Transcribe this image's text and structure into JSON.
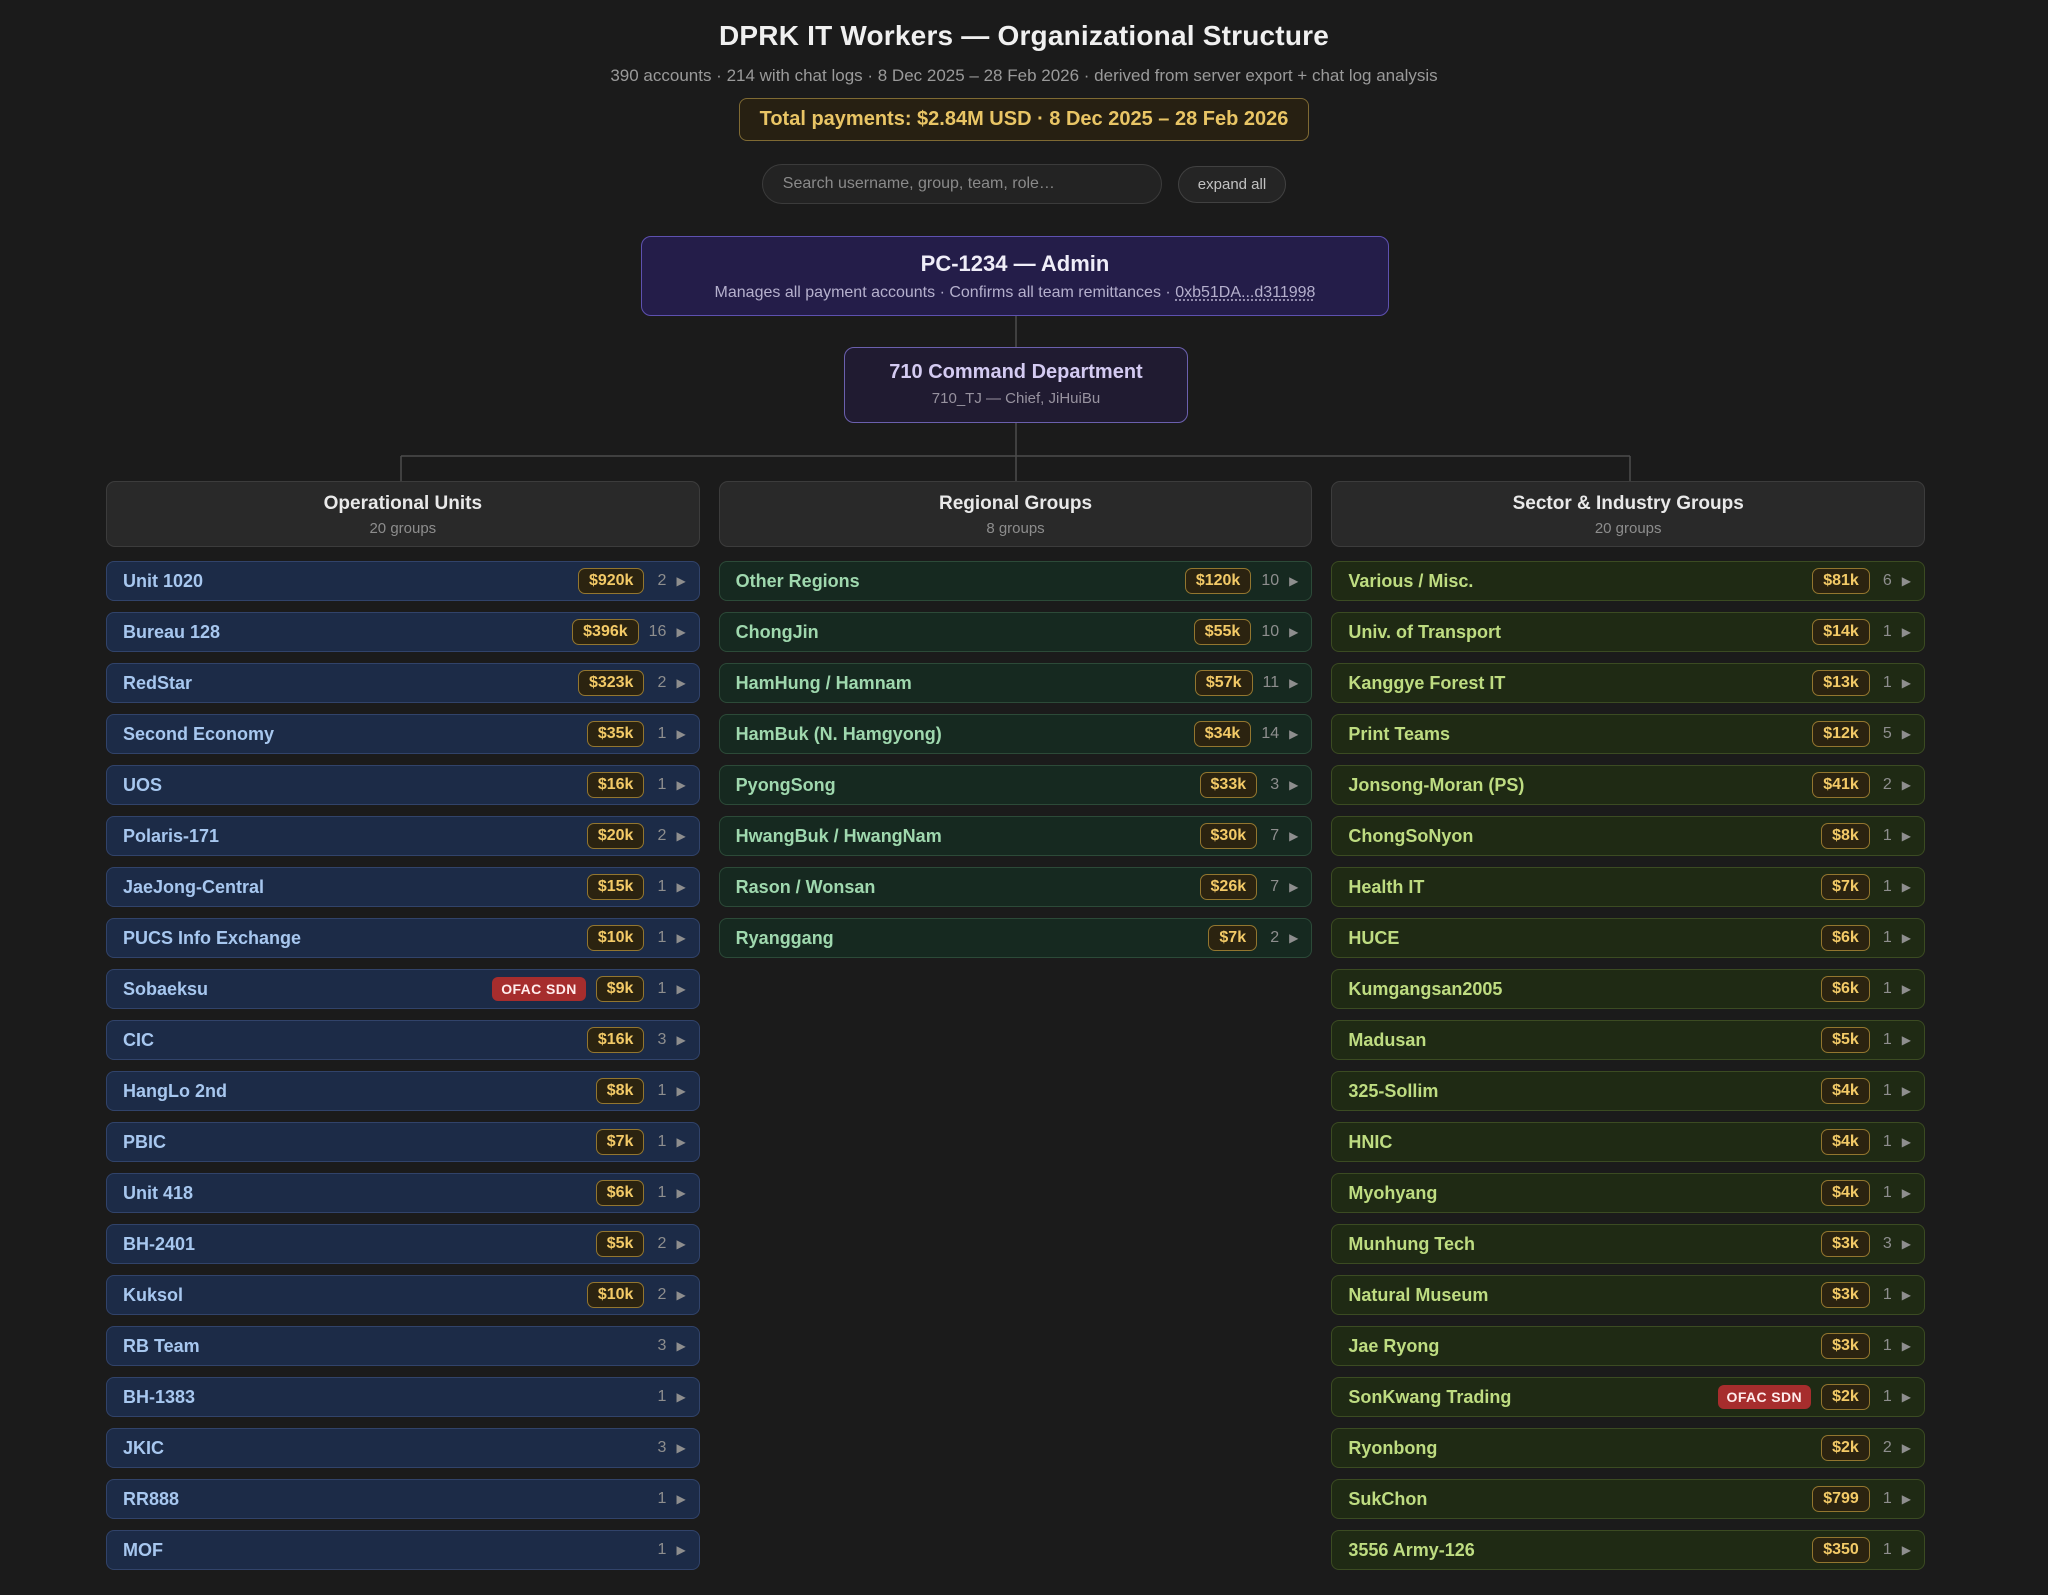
{
  "header": {
    "title": "DPRK IT Workers — Organizational Structure",
    "subtitle": "390 accounts · 214 with chat logs · 8 Dec 2025 – 28 Feb 2026 · derived from server export + chat log analysis",
    "total_badge": "Total payments: $2.84M USD · 8 Dec 2025 – 28 Feb 2026"
  },
  "search": {
    "placeholder": "Search username, group, team, role…",
    "expand_all_label": "expand all"
  },
  "admin_node": {
    "title": "PC-1234 — Admin",
    "description": "Manages all payment accounts · Confirms all team remittances ·",
    "wallet": "0xb51DA...d311998"
  },
  "command_node": {
    "title": "710 Command Department",
    "subtitle": "710_TJ — Chief, JiHuiBu"
  },
  "sdn_label": "OFAC SDN",
  "chevron_glyph": "▶",
  "columns": [
    {
      "title": "Operational Units",
      "subtitle": "20 groups",
      "theme": "col-blue",
      "items": [
        {
          "name": "Unit 1020",
          "amount": "$920k",
          "count": "2"
        },
        {
          "name": "Bureau 128",
          "amount": "$396k",
          "count": "16"
        },
        {
          "name": "RedStar",
          "amount": "$323k",
          "count": "2"
        },
        {
          "name": "Second Economy",
          "amount": "$35k",
          "count": "1"
        },
        {
          "name": "UOS",
          "amount": "$16k",
          "count": "1"
        },
        {
          "name": "Polaris-171",
          "amount": "$20k",
          "count": "2"
        },
        {
          "name": "JaeJong-Central",
          "amount": "$15k",
          "count": "1"
        },
        {
          "name": "PUCS Info Exchange",
          "amount": "$10k",
          "count": "1"
        },
        {
          "name": "Sobaeksu",
          "sdn": true,
          "amount": "$9k",
          "count": "1"
        },
        {
          "name": "CIC",
          "amount": "$16k",
          "count": "3"
        },
        {
          "name": "HangLo 2nd",
          "amount": "$8k",
          "count": "1"
        },
        {
          "name": "PBIC",
          "amount": "$7k",
          "count": "1"
        },
        {
          "name": "Unit 418",
          "amount": "$6k",
          "count": "1"
        },
        {
          "name": "BH-2401",
          "amount": "$5k",
          "count": "2"
        },
        {
          "name": "Kuksol",
          "amount": "$10k",
          "count": "2"
        },
        {
          "name": "RB Team",
          "amount": null,
          "count": "3"
        },
        {
          "name": "BH-1383",
          "amount": null,
          "count": "1"
        },
        {
          "name": "JKIC",
          "amount": null,
          "count": "3"
        },
        {
          "name": "RR888",
          "amount": null,
          "count": "1"
        },
        {
          "name": "MOF",
          "amount": null,
          "count": "1"
        }
      ]
    },
    {
      "title": "Regional Groups",
      "subtitle": "8 groups",
      "theme": "col-green",
      "items": [
        {
          "name": "Other Regions",
          "amount": "$120k",
          "count": "10"
        },
        {
          "name": "ChongJin",
          "amount": "$55k",
          "count": "10"
        },
        {
          "name": "HamHung / Hamnam",
          "amount": "$57k",
          "count": "11"
        },
        {
          "name": "HamBuk (N. Hamgyong)",
          "amount": "$34k",
          "count": "14"
        },
        {
          "name": "PyongSong",
          "amount": "$33k",
          "count": "3"
        },
        {
          "name": "HwangBuk / HwangNam",
          "amount": "$30k",
          "count": "7"
        },
        {
          "name": "Rason / Wonsan",
          "amount": "$26k",
          "count": "7"
        },
        {
          "name": "Ryanggang",
          "amount": "$7k",
          "count": "2"
        }
      ]
    },
    {
      "title": "Sector & Industry Groups",
      "subtitle": "20 groups",
      "theme": "col-olive",
      "items": [
        {
          "name": "Various / Misc.",
          "amount": "$81k",
          "count": "6"
        },
        {
          "name": "Univ. of Transport",
          "amount": "$14k",
          "count": "1"
        },
        {
          "name": "Kanggye Forest IT",
          "amount": "$13k",
          "count": "1"
        },
        {
          "name": "Print Teams",
          "amount": "$12k",
          "count": "5"
        },
        {
          "name": "Jonsong-Moran (PS)",
          "amount": "$41k",
          "count": "2"
        },
        {
          "name": "ChongSoNyon",
          "amount": "$8k",
          "count": "1"
        },
        {
          "name": "Health IT",
          "amount": "$7k",
          "count": "1"
        },
        {
          "name": "HUCE",
          "amount": "$6k",
          "count": "1"
        },
        {
          "name": "Kumgangsan2005",
          "amount": "$6k",
          "count": "1"
        },
        {
          "name": "Madusan",
          "amount": "$5k",
          "count": "1"
        },
        {
          "name": "325-Sollim",
          "amount": "$4k",
          "count": "1"
        },
        {
          "name": "HNIC",
          "amount": "$4k",
          "count": "1"
        },
        {
          "name": "Myohyang",
          "amount": "$4k",
          "count": "1"
        },
        {
          "name": "Munhung Tech",
          "amount": "$3k",
          "count": "3"
        },
        {
          "name": "Natural Museum",
          "amount": "$3k",
          "count": "1"
        },
        {
          "name": "Jae Ryong",
          "amount": "$3k",
          "count": "1"
        },
        {
          "name": "SonKwang Trading",
          "sdn": true,
          "amount": "$2k",
          "count": "1"
        },
        {
          "name": "Ryonbong",
          "amount": "$2k",
          "count": "2"
        },
        {
          "name": "SukChon",
          "amount": "$799",
          "count": "1"
        },
        {
          "name": "3556 Army-126",
          "amount": "$350",
          "count": "1"
        }
      ]
    }
  ],
  "colors": {
    "page_bg": "#1b1b1b",
    "gold_bg": "#272012",
    "gold_border": "#7f6a33",
    "gold_text": "#e9c565",
    "admin_bg": "#241d49",
    "admin_border": "#5e51b0",
    "command_bg": "#201b31",
    "command_border": "#6b60ae",
    "connector": "#4c4c4c",
    "money_bg": "#2b2310",
    "money_border": "#93762f",
    "money_text": "#f3ca67",
    "sdn_bg": "#a62d2d",
    "sdn_text": "#ffecec",
    "blue_row_bg": "#1c2b47",
    "blue_row_border": "#31436a",
    "blue_text": "#a7c7ef",
    "green_row_bg": "#162920",
    "green_row_border": "#2c4a38",
    "green_text": "#9fd8ae",
    "olive_row_bg": "#1f2a14",
    "olive_row_border": "#3b4b22",
    "olive_text": "#bedc81"
  }
}
